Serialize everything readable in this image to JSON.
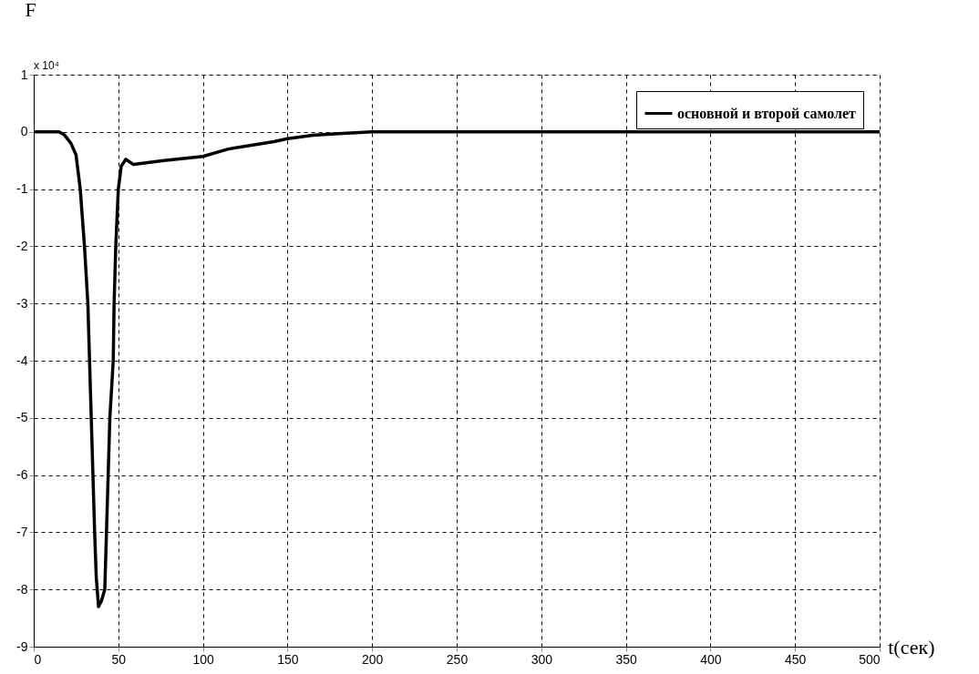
{
  "chart_data": {
    "type": "line",
    "xlabel": "t(сек)",
    "ylabel": "F",
    "annotations": [
      "x 10⁴"
    ],
    "xlim": [
      0,
      500
    ],
    "ylim": [
      -9,
      1
    ],
    "xticks": [
      0,
      50,
      100,
      150,
      200,
      250,
      300,
      350,
      400,
      450,
      500
    ],
    "yticks": [
      -9,
      -8,
      -7,
      -6,
      -5,
      -4,
      -3,
      -2,
      -1,
      0,
      1
    ],
    "grid": true,
    "legend": "top right",
    "line_style": "solid",
    "marker": "none",
    "series": [
      {
        "name": "основной и второй самолет",
        "color": "#000000",
        "x": [
          0,
          10,
          15,
          18,
          22,
          25,
          27.5,
          30,
          32,
          33,
          34,
          35,
          36,
          37,
          38.3,
          40,
          42,
          43,
          44,
          45,
          47,
          47.5,
          48.5,
          50,
          51.7,
          54.4,
          59,
          77,
          100,
          115,
          142,
          150,
          165,
          180,
          200,
          250,
          300,
          350,
          400,
          450,
          500
        ],
        "values": [
          0,
          0,
          0,
          -0.05,
          -0.2,
          -0.4,
          -1,
          -2,
          -3,
          -4,
          -5,
          -6,
          -7,
          -7.8,
          -8.3,
          -8.2,
          -8,
          -7,
          -6,
          -5,
          -4,
          -3,
          -2,
          -1,
          -0.6,
          -0.48,
          -0.57,
          -0.5,
          -0.43,
          -0.3,
          -0.17,
          -0.12,
          -0.06,
          -0.03,
          0,
          0,
          0,
          0,
          0,
          0,
          0
        ]
      }
    ]
  }
}
